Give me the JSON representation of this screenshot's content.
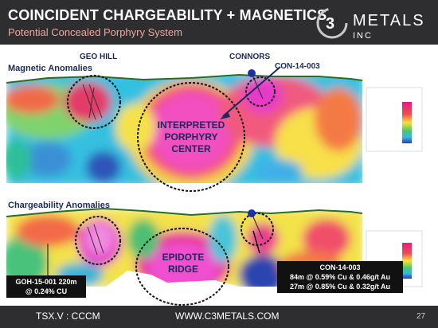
{
  "header": {
    "title": "COINCIDENT CHARGEABILITY + MAGNETICS",
    "subtitle": "Potential Concealed Porphyry System"
  },
  "logo": {
    "wordmark": "C3 METALS",
    "inc": "INC"
  },
  "map": {
    "labels": {
      "geo_hill": "GEO HILL",
      "connors": "CONNORS",
      "drillhole": "CON-14-003"
    },
    "magnetic_title": "Magnetic Anomalies",
    "chargeability_title": "Chargeability Anomalies",
    "porphyry_center": [
      "INTERPRETED",
      "PORPHYRY",
      "CENTER"
    ],
    "epidote_ridge": [
      "EPIDOTE",
      "RIDGE"
    ]
  },
  "callouts": {
    "goh": [
      "GOH-15-001 220m",
      "@ 0.24% CU"
    ],
    "con": [
      "CON-14-003",
      "84m @ 0.59% Cu & 0.46g/t Au",
      "27m @ 0.85% Cu & 0.32g/t Au"
    ]
  },
  "footer": {
    "ticker": "TSX.V : CCCM",
    "website": "WWW.C3METALS.COM",
    "page": "27"
  }
}
